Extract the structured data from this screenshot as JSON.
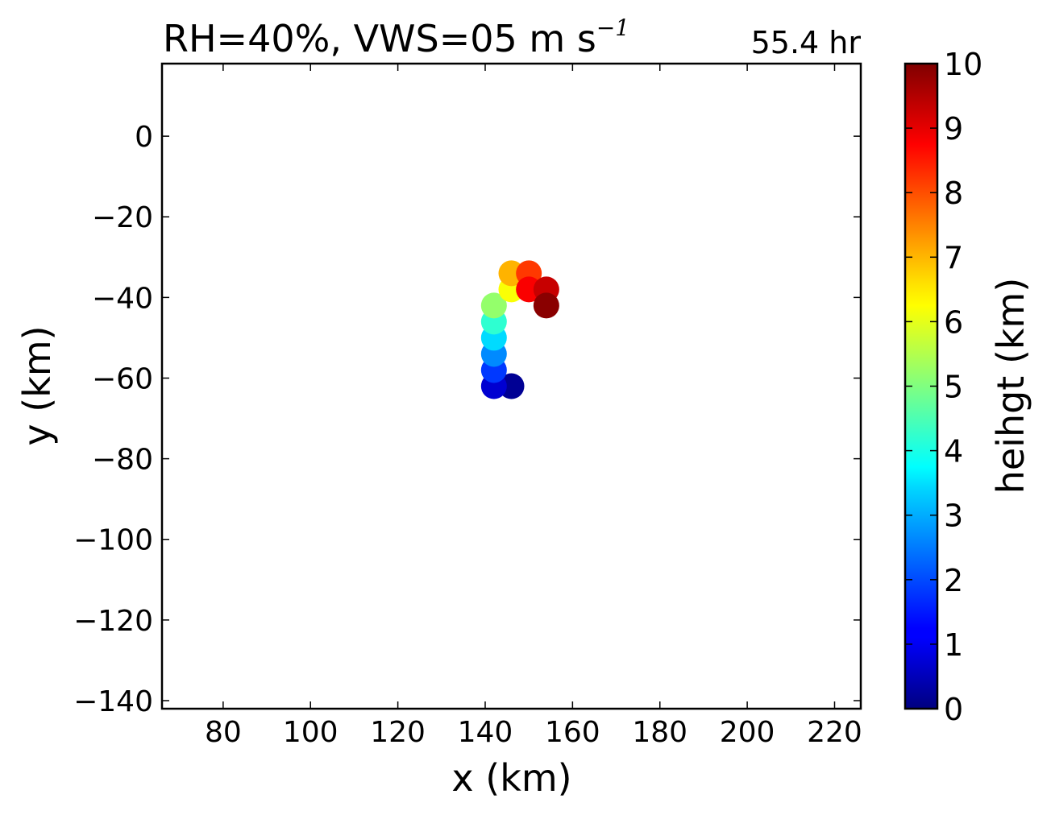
{
  "title_main": "RH=40%, VWS=05 m s",
  "title_exponent": "−1",
  "time_label": "55.4 hr",
  "time_label_color": "#0000ff",
  "chart_data": {
    "type": "scatter",
    "xlabel": "x (km)",
    "ylabel": "y (km)",
    "xlim": [
      66,
      226
    ],
    "ylim": [
      -142,
      18
    ],
    "xticks": [
      80,
      100,
      120,
      140,
      160,
      180,
      200,
      220
    ],
    "yticks": [
      0,
      -20,
      -40,
      -60,
      -80,
      -100,
      -120,
      -140
    ],
    "xtick_labels": [
      "80",
      "100",
      "120",
      "140",
      "160",
      "180",
      "200",
      "220"
    ],
    "ytick_labels": [
      "0",
      "−20",
      "−40",
      "−60",
      "−80",
      "−100",
      "−120",
      "−140"
    ],
    "points": [
      {
        "x": 146,
        "y": -62,
        "c": 0.2
      },
      {
        "x": 142,
        "y": -62,
        "c": 0.8
      },
      {
        "x": 142,
        "y": -58,
        "c": 1.8
      },
      {
        "x": 142,
        "y": -54,
        "c": 2.6
      },
      {
        "x": 142,
        "y": -50,
        "c": 3.4
      },
      {
        "x": 142,
        "y": -46,
        "c": 4.2
      },
      {
        "x": 142,
        "y": -42,
        "c": 5.2
      },
      {
        "x": 146,
        "y": -38,
        "c": 6.2
      },
      {
        "x": 146,
        "y": -34,
        "c": 7.0
      },
      {
        "x": 150,
        "y": -34,
        "c": 8.2
      },
      {
        "x": 150,
        "y": -38,
        "c": 8.8
      },
      {
        "x": 154,
        "y": -38,
        "c": 9.3
      },
      {
        "x": 154,
        "y": -42,
        "c": 9.9
      }
    ],
    "grid": false,
    "colormap": "jet",
    "colorbar": {
      "label": "heihgt (km)",
      "range": [
        0,
        10
      ],
      "ticks": [
        0,
        1,
        2,
        3,
        4,
        5,
        6,
        7,
        8,
        9,
        10
      ],
      "tick_labels": [
        "0",
        "1",
        "2",
        "3",
        "4",
        "5",
        "6",
        "7",
        "8",
        "9",
        "10"
      ]
    }
  }
}
